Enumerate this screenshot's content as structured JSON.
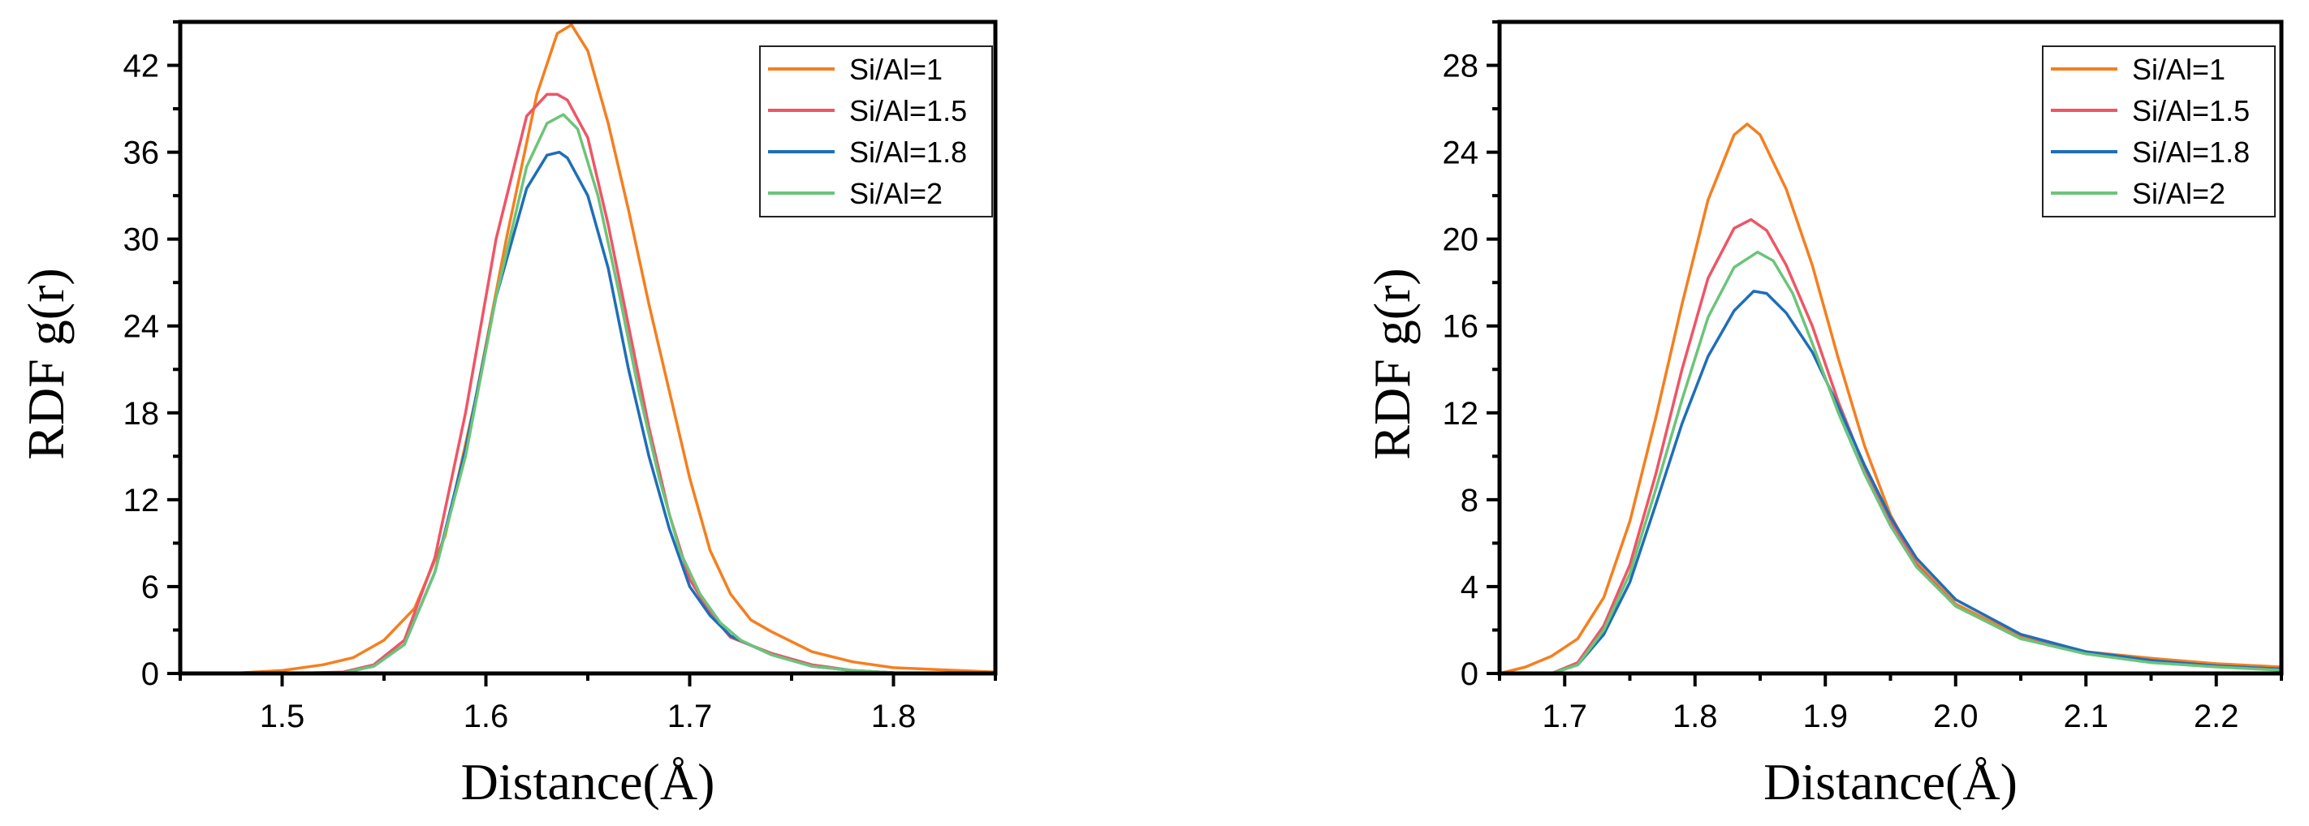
{
  "colors": {
    "Si/Al=1": "#f57f1f",
    "Si/Al=1.5": "#ef5566",
    "Si/Al=1.8": "#1f6eb8",
    "Si/Al=2": "#6cc47a"
  },
  "chart_data": [
    {
      "type": "line",
      "xlabel": "Distance(Å)",
      "ylabel": "RDF g(r)",
      "xlim": [
        1.45,
        1.85
      ],
      "ylim": [
        0,
        45
      ],
      "xticks": [
        1.5,
        1.6,
        1.7,
        1.8
      ],
      "xtick_labels": [
        "1.5",
        "1.6",
        "1.7",
        "1.8"
      ],
      "yticks": [
        0,
        6,
        12,
        18,
        24,
        30,
        36,
        42
      ],
      "ytick_labels": [
        "0",
        "6",
        "12",
        "18",
        "24",
        "30",
        "36",
        "42"
      ],
      "legend": "top-right",
      "grid": false,
      "series": [
        {
          "name": "Si/Al=1",
          "x": [
            1.45,
            1.48,
            1.5,
            1.52,
            1.535,
            1.55,
            1.565,
            1.58,
            1.595,
            1.61,
            1.625,
            1.635,
            1.642,
            1.65,
            1.66,
            1.67,
            1.68,
            1.69,
            1.7,
            1.71,
            1.72,
            1.73,
            1.74,
            1.76,
            1.78,
            1.8,
            1.85
          ],
          "y": [
            0,
            0.05,
            0.2,
            0.6,
            1.1,
            2.3,
            4.5,
            9.5,
            19,
            30,
            40,
            44.2,
            44.8,
            43,
            38,
            32,
            25.5,
            19.5,
            13.5,
            8.5,
            5.5,
            3.7,
            2.9,
            1.5,
            0.8,
            0.4,
            0.1
          ]
        },
        {
          "name": "Si/Al=1.5",
          "x": [
            1.5,
            1.53,
            1.545,
            1.56,
            1.575,
            1.59,
            1.605,
            1.62,
            1.63,
            1.635,
            1.64,
            1.65,
            1.66,
            1.67,
            1.68,
            1.69,
            1.7,
            1.71,
            1.72,
            1.74,
            1.76,
            1.78,
            1.8,
            1.85
          ],
          "y": [
            0,
            0.1,
            0.6,
            2.3,
            8,
            18,
            30,
            38.5,
            40,
            40,
            39.6,
            37,
            31,
            24,
            17,
            11,
            6.5,
            4.2,
            2.5,
            1.4,
            0.6,
            0.2,
            0.05,
            0
          ]
        },
        {
          "name": "Si/Al=1.8",
          "x": [
            1.5,
            1.53,
            1.545,
            1.56,
            1.575,
            1.59,
            1.605,
            1.62,
            1.63,
            1.636,
            1.64,
            1.65,
            1.66,
            1.67,
            1.68,
            1.69,
            1.7,
            1.71,
            1.72,
            1.74,
            1.76,
            1.78,
            1.8,
            1.85
          ],
          "y": [
            0,
            0.05,
            0.5,
            2,
            7,
            15.5,
            26,
            33.5,
            35.8,
            36,
            35.6,
            33,
            28,
            21,
            15,
            10,
            6,
            4,
            2.6,
            1.3,
            0.5,
            0.2,
            0.05,
            0
          ]
        },
        {
          "name": "Si/Al=2",
          "x": [
            1.5,
            1.53,
            1.545,
            1.56,
            1.575,
            1.59,
            1.605,
            1.62,
            1.63,
            1.638,
            1.645,
            1.655,
            1.665,
            1.675,
            1.685,
            1.695,
            1.705,
            1.715,
            1.725,
            1.74,
            1.76,
            1.78,
            1.8,
            1.85
          ],
          "y": [
            0,
            0.05,
            0.5,
            2,
            7,
            15,
            26,
            35,
            38,
            38.6,
            37.6,
            33,
            26.5,
            19.5,
            13.5,
            8.5,
            5.5,
            3.5,
            2.3,
            1.3,
            0.5,
            0.2,
            0.05,
            0
          ]
        }
      ]
    },
    {
      "type": "line",
      "xlabel": "Distance(Å)",
      "ylabel": "RDF g(r)",
      "xlim": [
        1.65,
        2.25
      ],
      "ylim": [
        0,
        30
      ],
      "xticks": [
        1.7,
        1.8,
        1.9,
        2.0,
        2.1,
        2.2
      ],
      "xtick_labels": [
        "1.7",
        "1.8",
        "1.9",
        "2.0",
        "2.1",
        "2.2"
      ],
      "yticks": [
        0,
        4,
        8,
        12,
        16,
        20,
        24,
        28
      ],
      "ytick_labels": [
        "0",
        "4",
        "8",
        "12",
        "16",
        "20",
        "24",
        "28"
      ],
      "legend": "top-right",
      "grid": false,
      "series": [
        {
          "name": "Si/Al=1",
          "x": [
            1.65,
            1.67,
            1.69,
            1.71,
            1.73,
            1.75,
            1.77,
            1.79,
            1.81,
            1.83,
            1.84,
            1.85,
            1.87,
            1.89,
            1.91,
            1.93,
            1.95,
            1.97,
            2.0,
            2.05,
            2.1,
            2.15,
            2.2,
            2.25
          ],
          "y": [
            0,
            0.3,
            0.8,
            1.6,
            3.5,
            7,
            11.8,
            17,
            21.8,
            24.8,
            25.3,
            24.8,
            22.3,
            18.8,
            14.5,
            10.5,
            7.3,
            5.1,
            3.2,
            1.7,
            1,
            0.7,
            0.45,
            0.3
          ]
        },
        {
          "name": "Si/Al=1.5",
          "x": [
            1.69,
            1.71,
            1.73,
            1.75,
            1.77,
            1.79,
            1.81,
            1.83,
            1.843,
            1.855,
            1.87,
            1.89,
            1.91,
            1.93,
            1.95,
            1.97,
            2.0,
            2.05,
            2.1,
            2.15,
            2.2,
            2.25
          ],
          "y": [
            0,
            0.5,
            2.2,
            5,
            9.2,
            14,
            18.2,
            20.5,
            20.9,
            20.4,
            18.8,
            16,
            12.5,
            9.5,
            7,
            5,
            3.1,
            1.6,
            1,
            0.6,
            0.35,
            0.2
          ]
        },
        {
          "name": "Si/Al=1.8",
          "x": [
            1.69,
            1.71,
            1.73,
            1.75,
            1.77,
            1.79,
            1.81,
            1.83,
            1.845,
            1.855,
            1.87,
            1.89,
            1.91,
            1.93,
            1.95,
            1.97,
            2.0,
            2.05,
            2.1,
            2.15,
            2.2,
            2.25
          ],
          "y": [
            0,
            0.4,
            1.8,
            4.2,
            7.8,
            11.5,
            14.6,
            16.7,
            17.6,
            17.5,
            16.6,
            14.8,
            12.3,
            9.6,
            7.2,
            5.3,
            3.4,
            1.8,
            1,
            0.6,
            0.35,
            0.2
          ]
        },
        {
          "name": "Si/Al=2",
          "x": [
            1.69,
            1.71,
            1.73,
            1.75,
            1.77,
            1.79,
            1.81,
            1.83,
            1.848,
            1.86,
            1.875,
            1.89,
            1.91,
            1.93,
            1.95,
            1.97,
            2.0,
            2.05,
            2.1,
            2.15,
            2.2,
            2.25
          ],
          "y": [
            0,
            0.4,
            2,
            4.6,
            8.5,
            12.6,
            16.4,
            18.7,
            19.4,
            19,
            17.5,
            15.2,
            12,
            9.2,
            6.8,
            4.9,
            3.1,
            1.6,
            0.9,
            0.5,
            0.3,
            0.15
          ]
        }
      ]
    }
  ]
}
